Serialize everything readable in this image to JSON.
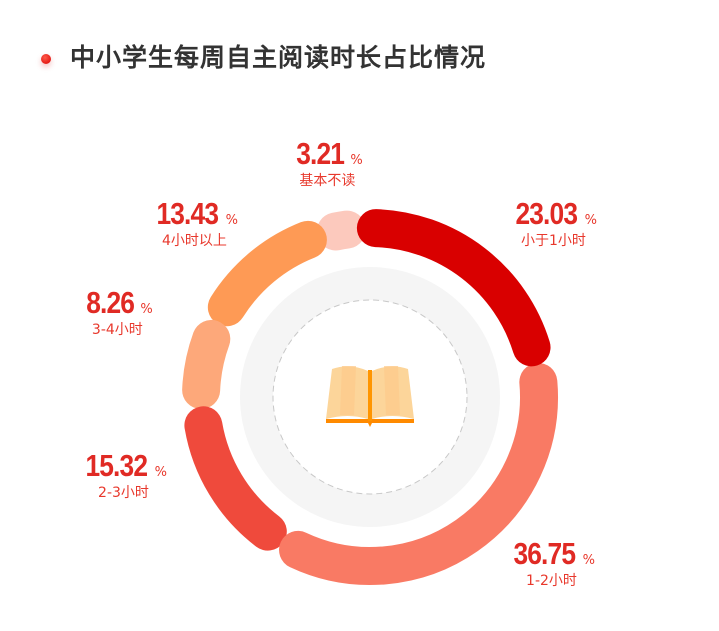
{
  "header": {
    "title": "中小学生每周自主阅读时长占比情况"
  },
  "chart_data": {
    "type": "pie",
    "variant": "donut",
    "unit": "%",
    "categories": [
      "小于1小时",
      "1-2小时",
      "2-3小时",
      "3-4小时",
      "4小时以上",
      "基本不读"
    ],
    "values": [
      23.03,
      36.75,
      15.32,
      8.26,
      13.43,
      3.21
    ],
    "value_labels": [
      "23.03",
      "36.75",
      "15.32",
      "8.26",
      "13.43",
      "3.21"
    ],
    "colors": [
      "#d90000",
      "#f97a64",
      "#ef4a3c",
      "#fda87a",
      "#fe9a55",
      "#fcc9bd"
    ],
    "center_icon": "open-book-icon",
    "legend": "none"
  }
}
